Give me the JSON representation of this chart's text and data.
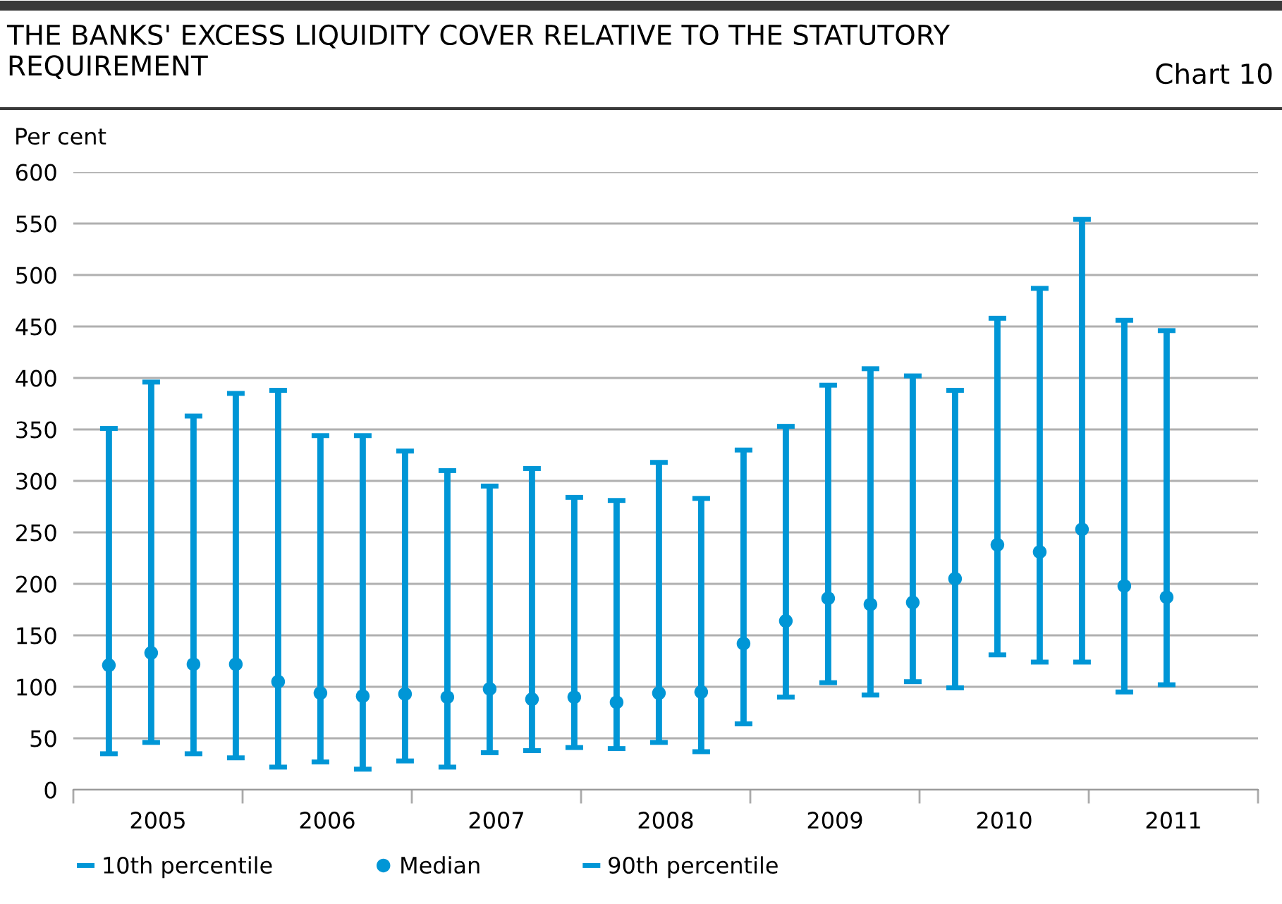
{
  "chart_data": {
    "type": "scatter",
    "title": "THE BANKS' EXCESS LIQUIDITY COVER RELATIVE TO THE STATUTORY\nREQUIREMENT",
    "annotations": [
      "Chart 10",
      "10th percentile",
      "90th percentile"
    ],
    "ylabel": "Per cent",
    "x": [
      2005.21,
      2005.46,
      2005.71,
      2005.96,
      2006.21,
      2006.46,
      2006.71,
      2006.96,
      2007.21,
      2007.46,
      2007.71,
      2007.96,
      2008.21,
      2008.46,
      2008.71,
      2008.96,
      2009.21,
      2009.46,
      2009.71,
      2009.96,
      2010.21,
      2010.46,
      2010.71,
      2010.96,
      2011.21,
      2011.46
    ],
    "series": [
      {
        "name": "Median",
        "color": "#0096d6",
        "marker": "circle",
        "values": [
          121,
          133,
          122,
          122,
          105,
          94,
          91,
          93,
          90,
          98,
          88,
          90,
          85,
          94,
          95,
          142,
          164,
          186,
          180,
          182,
          205,
          238,
          231,
          253,
          198,
          187
        ],
        "errors": [
          [
            35,
            351
          ],
          [
            46,
            396
          ],
          [
            35,
            363
          ],
          [
            31,
            385
          ],
          [
            22,
            388
          ],
          [
            27,
            344
          ],
          [
            20,
            344
          ],
          [
            28,
            329
          ],
          [
            22,
            310
          ],
          [
            36,
            295
          ],
          [
            38,
            312
          ],
          [
            41,
            284
          ],
          [
            40,
            281
          ],
          [
            46,
            318
          ],
          [
            37,
            283
          ],
          [
            64,
            330
          ],
          [
            90,
            353
          ],
          [
            104,
            393
          ],
          [
            92,
            409
          ],
          [
            105,
            402
          ],
          [
            99,
            388
          ],
          [
            131,
            458
          ],
          [
            124,
            487
          ],
          [
            124,
            554
          ],
          [
            95,
            456
          ],
          [
            102,
            446
          ]
        ]
      }
    ],
    "xlim": [
      2005,
      2012
    ],
    "xticks": [
      {
        "value": 2005,
        "label": null
      },
      {
        "value": 2005.5,
        "label": "2005"
      },
      {
        "value": 2006,
        "label": null
      },
      {
        "value": 2006.5,
        "label": "2006"
      },
      {
        "value": 2007,
        "label": null
      },
      {
        "value": 2007.5,
        "label": "2007"
      },
      {
        "value": 2008,
        "label": null
      },
      {
        "value": 2008.5,
        "label": "2008"
      },
      {
        "value": 2009,
        "label": null
      },
      {
        "value": 2009.5,
        "label": "2009"
      },
      {
        "value": 2010,
        "label": null
      },
      {
        "value": 2010.5,
        "label": "2010"
      },
      {
        "value": 2011,
        "label": null
      },
      {
        "value": 2011.5,
        "label": "2011"
      },
      {
        "value": 2012,
        "label": null
      }
    ],
    "ylim": [
      0,
      600
    ],
    "yticks": [
      0,
      50,
      100,
      150,
      200,
      250,
      300,
      350,
      400,
      450,
      500,
      550,
      600
    ],
    "grid": "y",
    "legend": "bottom left"
  }
}
